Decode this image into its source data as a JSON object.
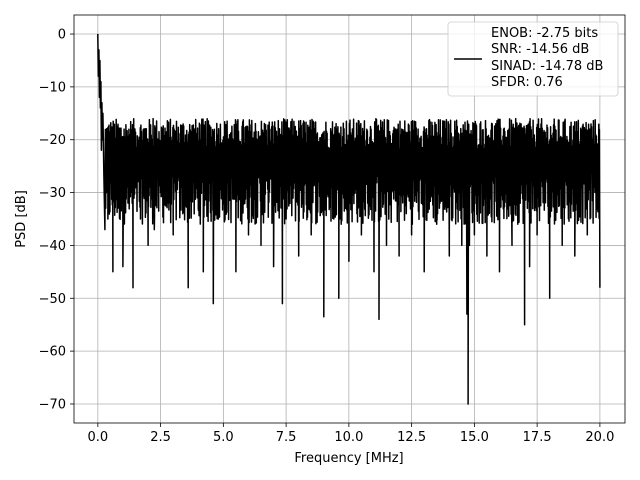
{
  "chart_data": {
    "type": "line",
    "title": "",
    "xlabel": "Frequency [MHz]",
    "ylabel": "PSD [dB]",
    "xlim": [
      -0.95,
      21.0
    ],
    "ylim": [
      -73.6,
      3.6
    ],
    "xticks": [
      0.0,
      2.5,
      5.0,
      7.5,
      10.0,
      12.5,
      15.0,
      17.5,
      20.0
    ],
    "xtick_labels": [
      "0.0",
      "2.5",
      "5.0",
      "7.5",
      "10.0",
      "12.5",
      "15.0",
      "17.5",
      "20.0"
    ],
    "yticks": [
      0,
      -10,
      -20,
      -30,
      -40,
      -50,
      -60,
      -70
    ],
    "ytick_labels": [
      "0",
      "−10",
      "−20",
      "−30",
      "−40",
      "−50",
      "−60",
      "−70"
    ],
    "grid": true,
    "legend_position": "top-right",
    "series": [
      {
        "name": "ENOB: -2.75 bits\nSNR: -14.56 dB\nSINAD: -14.78 dB\nSFDR: 0.76",
        "color": "#000000",
        "noise_band": {
          "upper_mean": -19,
          "lower_mean": -31,
          "x_start": 0.0,
          "x_end": 20.0
        },
        "points": [
          [
            0.0,
            0
          ],
          [
            0.02,
            -8
          ],
          [
            0.04,
            -3
          ],
          [
            0.06,
            -12
          ],
          [
            0.08,
            -5
          ],
          [
            0.1,
            -14
          ],
          [
            0.12,
            -9
          ],
          [
            0.14,
            -22
          ],
          [
            0.16,
            -13
          ],
          [
            0.18,
            -20
          ],
          [
            0.2,
            -15
          ],
          [
            0.24,
            -27
          ],
          [
            0.28,
            -37
          ],
          [
            0.35,
            -30
          ],
          [
            0.4,
            -35
          ],
          [
            0.5,
            -28
          ],
          [
            0.6,
            -45
          ],
          [
            0.8,
            -22
          ],
          [
            1.0,
            -44
          ],
          [
            1.2,
            -32
          ],
          [
            1.4,
            -48
          ],
          [
            1.7,
            -35
          ],
          [
            1.8,
            -25
          ],
          [
            2.0,
            -40
          ],
          [
            2.2,
            -16
          ],
          [
            2.25,
            -37
          ],
          [
            2.5,
            -30
          ],
          [
            3.0,
            -38
          ],
          [
            3.3,
            -28
          ],
          [
            3.6,
            -48
          ],
          [
            4.0,
            -33
          ],
          [
            4.2,
            -45
          ],
          [
            4.6,
            -51
          ],
          [
            4.8,
            -35
          ],
          [
            5.0,
            -30
          ],
          [
            5.5,
            -45
          ],
          [
            6.0,
            -38
          ],
          [
            6.5,
            -40
          ],
          [
            7.0,
            -44
          ],
          [
            7.35,
            -51
          ],
          [
            7.5,
            -35
          ],
          [
            8.0,
            -42
          ],
          [
            8.5,
            -38
          ],
          [
            9.0,
            -53.5
          ],
          [
            9.4,
            -35
          ],
          [
            9.6,
            -50
          ],
          [
            10.0,
            -43
          ],
          [
            10.5,
            -38
          ],
          [
            11.0,
            -45
          ],
          [
            11.2,
            -54
          ],
          [
            11.5,
            -40
          ],
          [
            12.0,
            -42
          ],
          [
            12.5,
            -38
          ],
          [
            13.0,
            -45
          ],
          [
            13.5,
            -36
          ],
          [
            14.0,
            -42
          ],
          [
            14.5,
            -40
          ],
          [
            14.7,
            -53
          ],
          [
            14.75,
            -70
          ],
          [
            14.8,
            -40
          ],
          [
            15.0,
            -38
          ],
          [
            15.5,
            -42
          ],
          [
            16.0,
            -45
          ],
          [
            16.5,
            -40
          ],
          [
            17.0,
            -55
          ],
          [
            17.2,
            -44
          ],
          [
            17.5,
            -38
          ],
          [
            18.0,
            -50
          ],
          [
            18.5,
            -40
          ],
          [
            19.0,
            -42
          ],
          [
            19.5,
            -38
          ],
          [
            20.0,
            -48
          ]
        ]
      }
    ]
  }
}
